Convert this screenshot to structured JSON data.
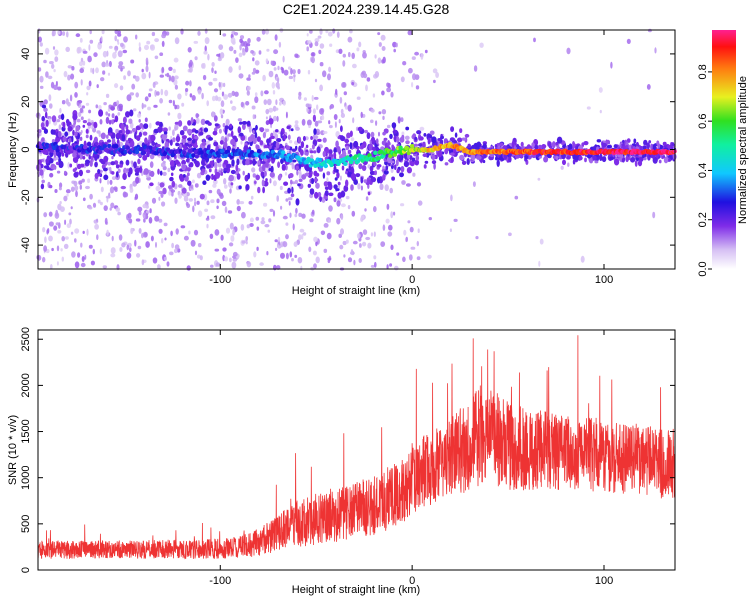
{
  "title": "C2E1.2024.239.14.45.G28",
  "chart_data": [
    {
      "type": "heatmap",
      "xlabel": "Height of straight line (km)",
      "ylabel": "Frequency (Hz)",
      "xlim": [
        -195,
        137
      ],
      "ylim": [
        -50,
        50
      ],
      "x_ticks": [
        -100,
        0,
        100
      ],
      "y_ticks": [
        -40,
        -20,
        0,
        20,
        40
      ],
      "colorbar": {
        "label": "Normalized spectral amplitude",
        "range": [
          0,
          0.97
        ],
        "ticks": [
          "0.0",
          "0.2",
          "0.4",
          "0.6",
          "0.8"
        ]
      },
      "ridge": {
        "x": [
          -195,
          -150,
          -100,
          -70,
          -55,
          -45,
          -30,
          -20,
          -10,
          0,
          10,
          20,
          30,
          40,
          60,
          80,
          100,
          120,
          137
        ],
        "freq": [
          1,
          0,
          -2,
          -2,
          -5,
          -6,
          -4,
          -3,
          -1,
          0,
          0,
          2,
          -1,
          -1,
          -1,
          -1,
          -1,
          -1,
          -1
        ],
        "amplitude": [
          0.25,
          0.25,
          0.3,
          0.35,
          0.4,
          0.45,
          0.5,
          0.55,
          0.6,
          0.7,
          0.75,
          0.8,
          0.8,
          0.85,
          0.9,
          0.92,
          0.95,
          0.95,
          0.95
        ]
      }
    },
    {
      "type": "line",
      "xlabel": "Height of straight line (km)",
      "ylabel": "SNR (10 * v/v)",
      "xlim": [
        -195,
        137
      ],
      "ylim": [
        0,
        2600
      ],
      "x_ticks": [
        -100,
        0,
        100
      ],
      "y_ticks": [
        0,
        500,
        1000,
        1500,
        2000,
        2500
      ],
      "color": "#ee3333",
      "envelope": {
        "x": [
          -195,
          -150,
          -100,
          -90,
          -80,
          -70,
          -60,
          -50,
          -40,
          -30,
          -20,
          -10,
          -5,
          0,
          5,
          10,
          15,
          20,
          25,
          30,
          35,
          40,
          45,
          50,
          60,
          70,
          80,
          90,
          100,
          110,
          120,
          130,
          137
        ],
        "mean": [
          220,
          220,
          230,
          250,
          300,
          400,
          500,
          550,
          600,
          650,
          700,
          800,
          850,
          1000,
          1050,
          1100,
          1200,
          1250,
          1300,
          1350,
          1450,
          1500,
          1400,
          1350,
          1300,
          1300,
          1250,
          1250,
          1250,
          1200,
          1200,
          1150,
          1150
        ],
        "spread": [
          100,
          100,
          110,
          120,
          150,
          200,
          250,
          280,
          300,
          300,
          320,
          350,
          360,
          380,
          400,
          400,
          420,
          450,
          480,
          500,
          550,
          550,
          500,
          480,
          450,
          430,
          420,
          400,
          400,
          400,
          380,
          380,
          380
        ]
      }
    }
  ]
}
